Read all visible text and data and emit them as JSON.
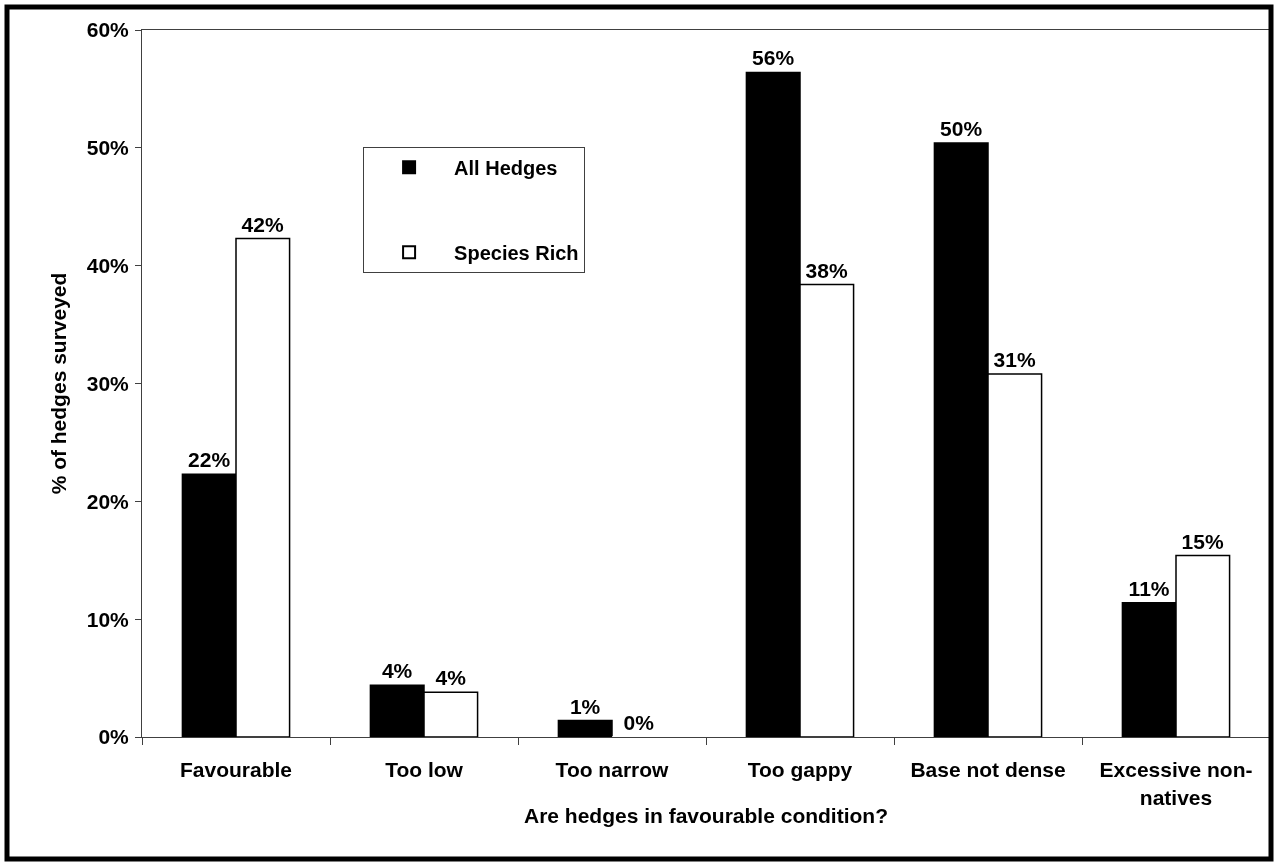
{
  "chart_data": {
    "type": "bar",
    "xlabel": "Are hedges in favourable condition?",
    "ylabel": "% of hedges surveyed",
    "categories": [
      "Favourable",
      "Too low",
      "Too narrow",
      "Too gappy",
      "Base not dense",
      "Excessive non-natives"
    ],
    "series": [
      {
        "name": "All Hedges",
        "color": "#000000",
        "values": [
          22.3,
          4.4,
          1.4,
          56.4,
          50.4,
          11.4
        ],
        "value_labels": [
          "22%",
          "4%",
          "1%",
          "56%",
          "50%",
          "11%"
        ]
      },
      {
        "name": "Species Rich",
        "color": "#ffffff",
        "values": [
          42.3,
          3.8,
          0,
          38.4,
          30.8,
          15.4
        ],
        "value_labels": [
          "42%",
          "4%",
          "0%",
          "38%",
          "31%",
          "15%"
        ]
      }
    ],
    "ylim": [
      0,
      60
    ],
    "yticks": [
      {
        "value": 0,
        "label": "0%"
      },
      {
        "value": 10,
        "label": "10%"
      },
      {
        "value": 20,
        "label": "20%"
      },
      {
        "value": 30,
        "label": "30%"
      },
      {
        "value": 40,
        "label": "40%"
      },
      {
        "value": 50,
        "label": "50%"
      },
      {
        "value": 60,
        "label": "60%"
      }
    ],
    "legend": "top left"
  }
}
